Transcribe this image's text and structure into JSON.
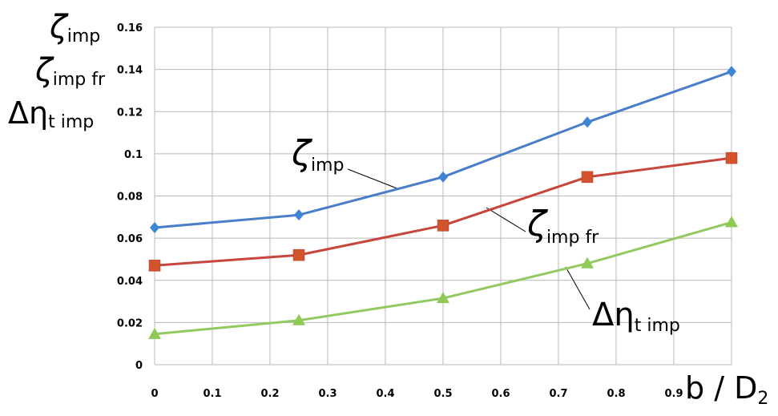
{
  "chart_data": {
    "type": "line",
    "x": [
      0,
      0.25,
      0.5,
      0.75,
      1.0
    ],
    "xlim": [
      0,
      1.0
    ],
    "ylim": [
      0,
      0.16
    ],
    "x_ticks": [
      "0",
      "0.1",
      "0.2",
      "0.3",
      "0.4",
      "0.5",
      "0.6",
      "0.7",
      "0.8",
      "0.9",
      "1"
    ],
    "y_ticks": [
      "0",
      "0.02",
      "0.04",
      "0.06",
      "0.08",
      "0.1",
      "0.12",
      "0.14",
      "0.16"
    ],
    "xlabel": {
      "main": "b / D",
      "sub": "2"
    },
    "ylabels": [
      {
        "main": "ζ",
        "sub": "imp"
      },
      {
        "main": "ζ",
        "sub": "imp fr"
      },
      {
        "main": "Δη",
        "sub": "t imp"
      }
    ],
    "grid": true,
    "series": [
      {
        "name": "ζ",
        "name_sub": "imp",
        "marker": "diamond",
        "color": "#4a7ec8",
        "marker_color": "#3d86d6",
        "values": [
          0.065,
          0.071,
          0.089,
          0.115,
          0.139
        ]
      },
      {
        "name": "ζ",
        "name_sub": "imp fr",
        "marker": "square",
        "color": "#c8453c",
        "marker_color": "#d2542c",
        "values": [
          0.047,
          0.052,
          0.066,
          0.089,
          0.098
        ]
      },
      {
        "name": "Δη",
        "name_sub": "t imp",
        "marker": "triangle",
        "color": "#92c960",
        "marker_color": "#8fca55",
        "values": [
          0.0145,
          0.021,
          0.0315,
          0.048,
          0.0675
        ]
      }
    ]
  }
}
